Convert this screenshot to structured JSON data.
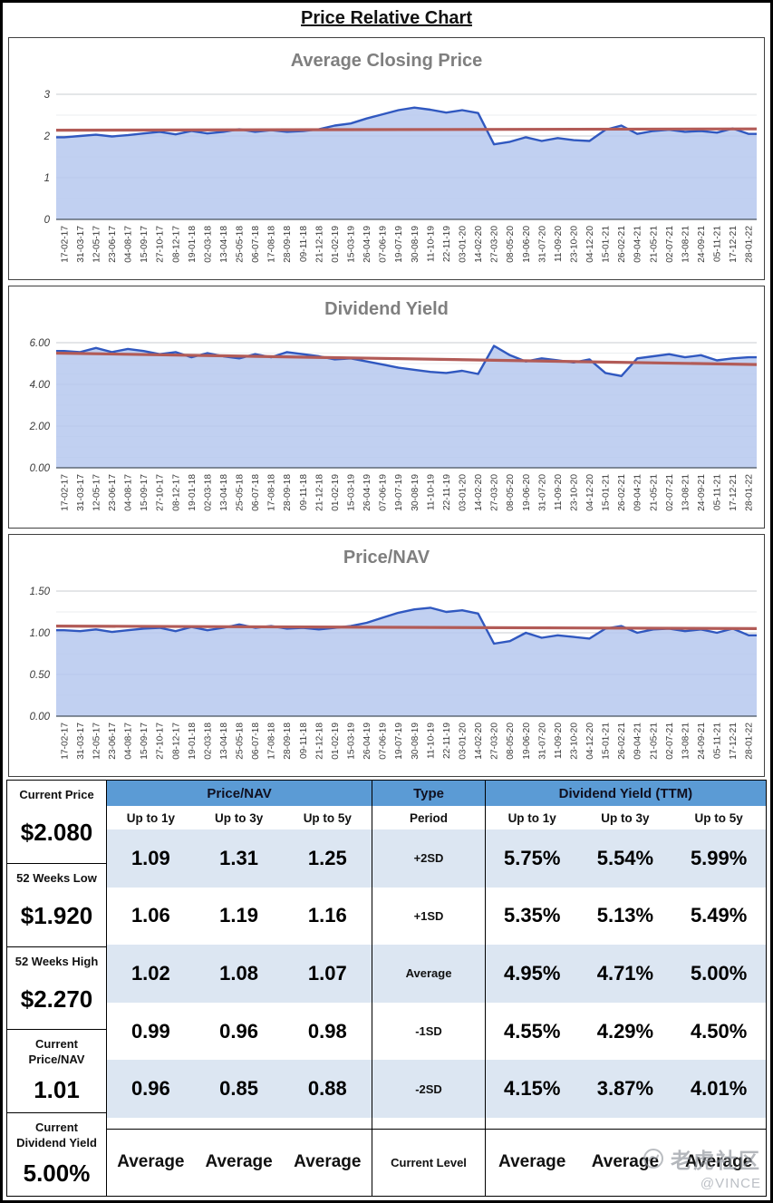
{
  "page_title": "Price Relative Chart",
  "colors": {
    "header_blue": "#5b9bd5",
    "band_blue": "#dce6f2",
    "line_blue": "#3058c0",
    "fill_blue": "#b6c8ee",
    "trend_red": "#b25b57",
    "chart_title_grey": "#7f7f7f"
  },
  "chart_data": [
    {
      "type": "area",
      "title": "Average Closing Price",
      "xlabel": "",
      "ylabel": "",
      "ylim": [
        0,
        3
      ],
      "yticks": [
        0,
        1,
        2,
        3
      ],
      "ytick_labels": [
        "0",
        "1",
        "2",
        "3"
      ],
      "minor_step": 0.5,
      "grid": true,
      "legend": "none",
      "categories": [
        "17-02-17",
        "31-03-17",
        "12-05-17",
        "23-06-17",
        "04-08-17",
        "15-09-17",
        "27-10-17",
        "08-12-17",
        "19-01-18",
        "02-03-18",
        "13-04-18",
        "25-05-18",
        "06-07-18",
        "17-08-18",
        "28-09-18",
        "09-11-18",
        "21-12-18",
        "01-02-19",
        "15-03-19",
        "26-04-19",
        "07-06-19",
        "19-07-19",
        "30-08-19",
        "11-10-19",
        "22-11-19",
        "03-01-20",
        "14-02-20",
        "27-03-20",
        "08-05-20",
        "19-06-20",
        "31-07-20",
        "11-09-20",
        "23-10-20",
        "04-12-20",
        "15-01-21",
        "26-02-21",
        "09-04-21",
        "21-05-21",
        "02-07-21",
        "13-08-21",
        "24-09-21",
        "05-11-21",
        "17-12-21",
        "28-01-22"
      ],
      "values": [
        1.97,
        2.0,
        2.03,
        1.99,
        2.02,
        2.06,
        2.1,
        2.04,
        2.12,
        2.06,
        2.1,
        2.16,
        2.1,
        2.14,
        2.1,
        2.12,
        2.16,
        2.25,
        2.3,
        2.42,
        2.52,
        2.62,
        2.68,
        2.63,
        2.56,
        2.62,
        2.55,
        1.8,
        1.86,
        1.97,
        1.88,
        1.95,
        1.9,
        1.88,
        2.15,
        2.25,
        2.05,
        2.12,
        2.15,
        2.1,
        2.12,
        2.08,
        2.18,
        2.05
      ],
      "trendline": {
        "start": 2.14,
        "end": 2.17
      }
    },
    {
      "type": "area",
      "title": "Dividend Yield",
      "xlabel": "",
      "ylabel": "",
      "ylim": [
        0,
        6
      ],
      "yticks": [
        0,
        2,
        4,
        6
      ],
      "ytick_labels": [
        "0.00",
        "2.00",
        "4.00",
        "6.00"
      ],
      "minor_step": 0.5,
      "grid": true,
      "legend": "none",
      "categories": [
        "17-02-17",
        "31-03-17",
        "12-05-17",
        "23-06-17",
        "04-08-17",
        "15-09-17",
        "27-10-17",
        "08-12-17",
        "19-01-18",
        "02-03-18",
        "13-04-18",
        "25-05-18",
        "06-07-18",
        "17-08-18",
        "28-09-18",
        "09-11-18",
        "21-12-18",
        "01-02-19",
        "15-03-19",
        "26-04-19",
        "07-06-19",
        "19-07-19",
        "30-08-19",
        "11-10-19",
        "22-11-19",
        "03-01-20",
        "14-02-20",
        "27-03-20",
        "08-05-20",
        "19-06-20",
        "31-07-20",
        "11-09-20",
        "23-10-20",
        "04-12-20",
        "15-01-21",
        "26-02-21",
        "09-04-21",
        "21-05-21",
        "02-07-21",
        "13-08-21",
        "24-09-21",
        "05-11-21",
        "17-12-21",
        "28-01-22"
      ],
      "values": [
        5.6,
        5.55,
        5.75,
        5.55,
        5.7,
        5.6,
        5.45,
        5.55,
        5.3,
        5.5,
        5.35,
        5.25,
        5.45,
        5.3,
        5.55,
        5.45,
        5.35,
        5.2,
        5.25,
        5.1,
        4.95,
        4.8,
        4.7,
        4.6,
        4.55,
        4.65,
        4.5,
        5.85,
        5.4,
        5.1,
        5.25,
        5.15,
        5.05,
        5.2,
        4.55,
        4.4,
        5.25,
        5.35,
        5.45,
        5.3,
        5.4,
        5.15,
        5.25,
        5.3
      ],
      "trendline": {
        "start": 5.5,
        "end": 4.95
      }
    },
    {
      "type": "area",
      "title": "Price/NAV",
      "xlabel": "",
      "ylabel": "",
      "ylim": [
        0,
        1.5
      ],
      "yticks": [
        0,
        0.5,
        1.0,
        1.5
      ],
      "ytick_labels": [
        "0.00",
        "0.50",
        "1.00",
        "1.50"
      ],
      "minor_step": 0.25,
      "grid": true,
      "legend": "none",
      "categories": [
        "17-02-17",
        "31-03-17",
        "12-05-17",
        "23-06-17",
        "04-08-17",
        "15-09-17",
        "27-10-17",
        "08-12-17",
        "19-01-18",
        "02-03-18",
        "13-04-18",
        "25-05-18",
        "06-07-18",
        "17-08-18",
        "28-09-18",
        "09-11-18",
        "21-12-18",
        "01-02-19",
        "15-03-19",
        "26-04-19",
        "07-06-19",
        "19-07-19",
        "30-08-19",
        "11-10-19",
        "22-11-19",
        "03-01-20",
        "14-02-20",
        "27-03-20",
        "08-05-20",
        "19-06-20",
        "31-07-20",
        "11-09-20",
        "23-10-20",
        "04-12-20",
        "15-01-21",
        "26-02-21",
        "09-04-21",
        "21-05-21",
        "02-07-21",
        "13-08-21",
        "24-09-21",
        "05-11-21",
        "17-12-21",
        "28-01-22"
      ],
      "values": [
        1.03,
        1.02,
        1.04,
        1.01,
        1.03,
        1.05,
        1.06,
        1.02,
        1.07,
        1.03,
        1.06,
        1.1,
        1.06,
        1.08,
        1.05,
        1.06,
        1.04,
        1.06,
        1.08,
        1.12,
        1.18,
        1.24,
        1.28,
        1.3,
        1.25,
        1.27,
        1.23,
        0.87,
        0.9,
        1.0,
        0.94,
        0.97,
        0.95,
        0.93,
        1.05,
        1.08,
        1.0,
        1.04,
        1.05,
        1.02,
        1.04,
        1.0,
        1.05,
        0.97
      ],
      "trendline": {
        "start": 1.08,
        "end": 1.05
      }
    }
  ],
  "summary_left": [
    {
      "label": "Current Price",
      "value": "$2.080"
    },
    {
      "label": "52 Weeks Low",
      "value": "$1.920"
    },
    {
      "label": "52 Weeks High",
      "value": "$2.270"
    },
    {
      "label": "Current Price/NAV",
      "value": "1.01"
    },
    {
      "label": "Current Dividend Yield",
      "value": "5.00%"
    }
  ],
  "table": {
    "group_headers": [
      "Price/NAV",
      "Type",
      "Dividend Yield (TTM)"
    ],
    "sub_headers": [
      "Up to 1y",
      "Up to 3y",
      "Up to 5y",
      "Period",
      "Up to 1y",
      "Up to 3y",
      "Up to 5y"
    ],
    "rows": [
      {
        "period": "+2SD",
        "pnav": [
          "1.09",
          "1.31",
          "1.25"
        ],
        "dy": [
          "5.75%",
          "5.54%",
          "5.99%"
        ]
      },
      {
        "period": "+1SD",
        "pnav": [
          "1.06",
          "1.19",
          "1.16"
        ],
        "dy": [
          "5.35%",
          "5.13%",
          "5.49%"
        ]
      },
      {
        "period": "Average",
        "pnav": [
          "1.02",
          "1.08",
          "1.07"
        ],
        "dy": [
          "4.95%",
          "4.71%",
          "5.00%"
        ]
      },
      {
        "period": "-1SD",
        "pnav": [
          "0.99",
          "0.96",
          "0.98"
        ],
        "dy": [
          "4.55%",
          "4.29%",
          "4.50%"
        ]
      },
      {
        "period": "-2SD",
        "pnav": [
          "0.96",
          "0.85",
          "0.88"
        ],
        "dy": [
          "4.15%",
          "3.87%",
          "4.01%"
        ]
      }
    ],
    "current_row": {
      "period": "Current Level",
      "pnav": [
        "Average",
        "Average",
        "Average"
      ],
      "dy": [
        "Average",
        "Average",
        "Average"
      ]
    }
  },
  "watermark": {
    "community": "老虎社区",
    "handle": "@VINCE"
  }
}
